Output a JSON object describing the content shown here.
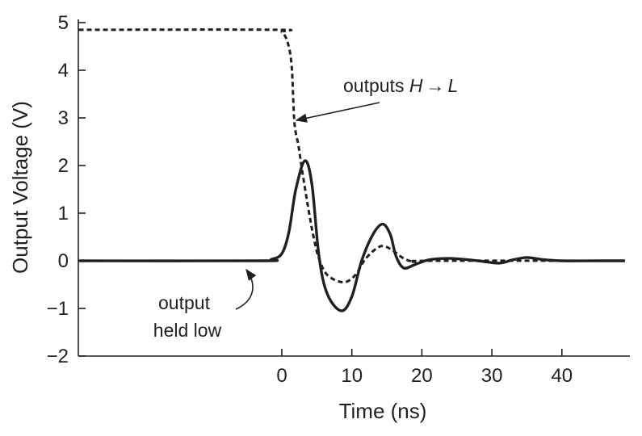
{
  "chart_data": {
    "type": "line",
    "title": "",
    "xlabel": "Time (ns)",
    "ylabel": "Output Voltage (V)",
    "xlim": [
      -29,
      49
    ],
    "ylim": [
      -2,
      5
    ],
    "grid": false,
    "x_ticks": [
      0,
      10,
      20,
      30,
      40
    ],
    "x_tick_labels": [
      "0",
      "10",
      "20",
      "30",
      "40"
    ],
    "y_ticks": [
      5,
      4,
      3,
      2,
      1,
      0,
      -1,
      -2
    ],
    "y_tick_labels": [
      "5",
      "4",
      "3",
      "2",
      "1",
      "0",
      "−1",
      "−2"
    ],
    "series": [
      {
        "name": "output held low",
        "style": "solid",
        "x": [
          -29,
          -3,
          -1.5,
          0,
          1,
          2,
          3.3,
          4.3,
          5.3,
          6.5,
          8.5,
          10,
          11.4,
          13,
          14.4,
          15.5,
          16.3,
          17.4,
          19,
          21,
          24,
          28,
          31,
          33,
          35,
          37,
          40,
          45,
          49
        ],
        "y": [
          0,
          0,
          0.03,
          0.15,
          0.6,
          1.5,
          2.1,
          1.6,
          0.1,
          -0.7,
          -1.05,
          -0.75,
          0.0,
          0.55,
          0.77,
          0.55,
          0.1,
          -0.15,
          -0.08,
          0.02,
          0.05,
          0.0,
          -0.05,
          0.02,
          0.07,
          0.03,
          0.0,
          0.0,
          0.0
        ]
      },
      {
        "name": "outputs H → L",
        "style": "dashed",
        "x": [
          -29,
          -1,
          0,
          0.8,
          1.4,
          1.8,
          2.4,
          3.0,
          3.9,
          4.6,
          5.3,
          6.5,
          8.8,
          10.5,
          12,
          14,
          15.5,
          17.4,
          19,
          21,
          49
        ],
        "y": [
          4.85,
          4.85,
          4.8,
          4.6,
          4.1,
          2.9,
          2.4,
          1.8,
          1.0,
          0.45,
          0.05,
          -0.3,
          -0.45,
          -0.3,
          0.05,
          0.3,
          0.25,
          0.05,
          -0.02,
          0.0,
          0.0
        ]
      }
    ],
    "annotations": [
      {
        "text_prefix": "outputs ",
        "text_from": "H",
        "arrow": "→",
        "text_to": "L",
        "target": {
          "x": 1.8,
          "y": 2.9
        }
      },
      {
        "lines": [
          "output",
          "held low"
        ],
        "target": {
          "x": -5,
          "y": 0
        }
      }
    ]
  }
}
